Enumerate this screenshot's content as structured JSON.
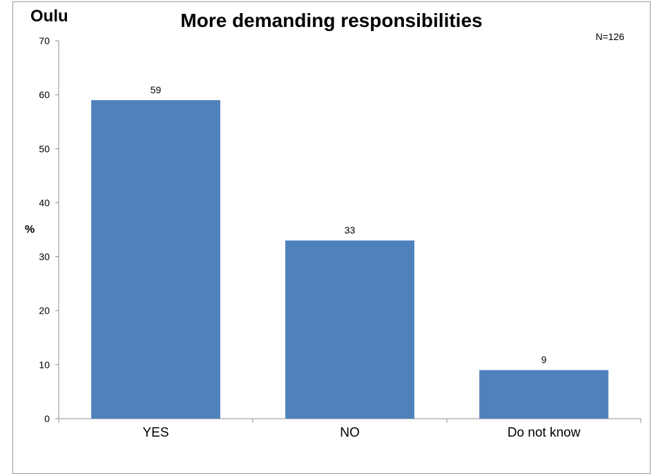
{
  "corner_label": "Oulu",
  "note": "N=126",
  "chart_data": {
    "type": "bar",
    "title": "More demanding responsibilities",
    "ylabel": "%",
    "xlabel": "",
    "categories": [
      "YES",
      "NO",
      "Do not know"
    ],
    "values": [
      59,
      33,
      9
    ],
    "value_labels": [
      "59",
      "33",
      "9"
    ],
    "ylim": [
      0,
      70
    ],
    "yticks": [
      0,
      10,
      20,
      30,
      40,
      50,
      60,
      70
    ],
    "grid": false,
    "legend": "none",
    "bar_color": "#4f81bd"
  }
}
